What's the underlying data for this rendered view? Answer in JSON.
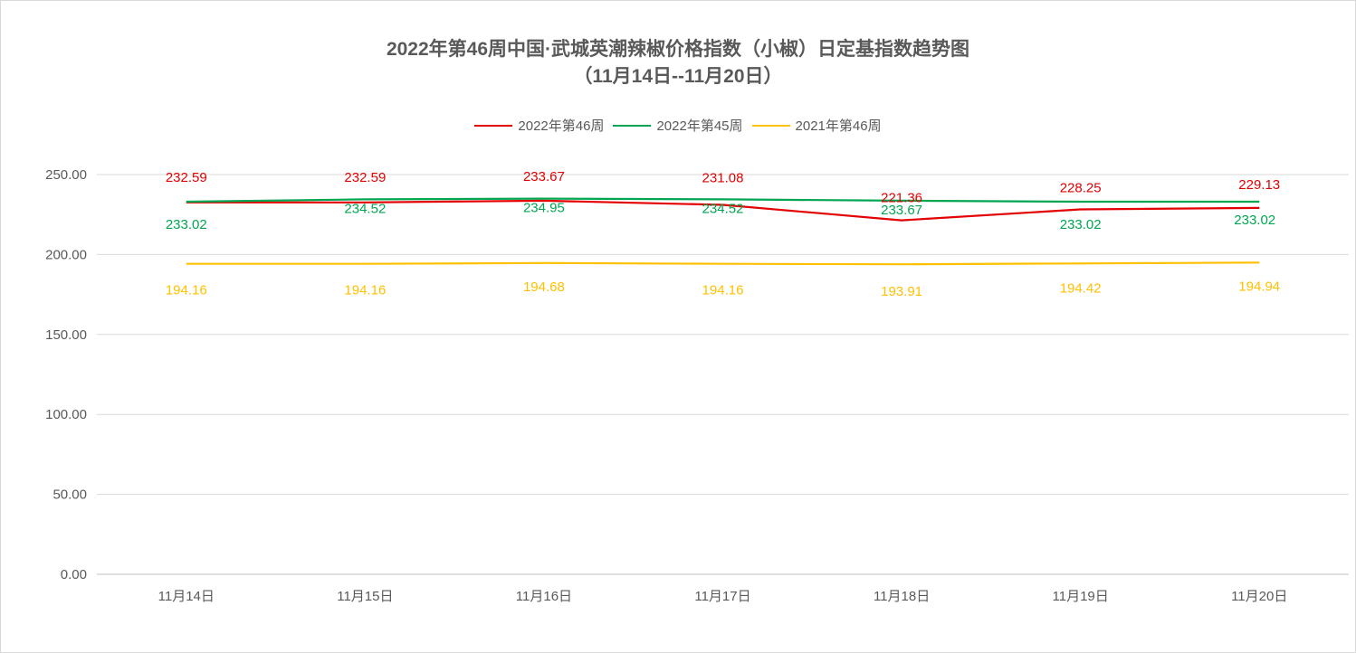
{
  "chart_data": {
    "type": "line",
    "title": "2022年第46周中国·武城英潮辣椒价格指数（小椒）日定基指数趋势图",
    "subtitle": "（11月14日--11月20日）",
    "categories": [
      "11月14日",
      "11月15日",
      "11月16日",
      "11月17日",
      "11月18日",
      "11月19日",
      "11月20日"
    ],
    "yticks": [
      "0.00",
      "50.00",
      "100.00",
      "150.00",
      "200.00",
      "250.00"
    ],
    "ylim": [
      0,
      250
    ],
    "xlabel": "",
    "ylabel": "",
    "grid": true,
    "legend_position": "top",
    "series": [
      {
        "name": "2022年第46周",
        "color": "#e30000",
        "values": [
          232.59,
          232.59,
          233.67,
          231.08,
          221.36,
          228.25,
          229.13
        ],
        "labels": [
          "232.59",
          "232.59",
          "233.67",
          "231.08",
          "221.36",
          "228.25",
          "229.13"
        ]
      },
      {
        "name": "2022年第45周",
        "color": "#00a651",
        "values": [
          233.02,
          234.52,
          234.95,
          234.52,
          233.67,
          233.02,
          233.02
        ],
        "labels": [
          "233.02",
          "234.52",
          "234.95",
          "234.52",
          "233.67",
          "233.02",
          "233.02"
        ]
      },
      {
        "name": "2021年第46周",
        "color": "#ffc000",
        "values": [
          194.16,
          194.16,
          194.68,
          194.16,
          193.91,
          194.42,
          194.94
        ],
        "labels": [
          "194.16",
          "194.16",
          "194.68",
          "194.16",
          "193.91",
          "194.42",
          "194.94"
        ]
      }
    ]
  }
}
